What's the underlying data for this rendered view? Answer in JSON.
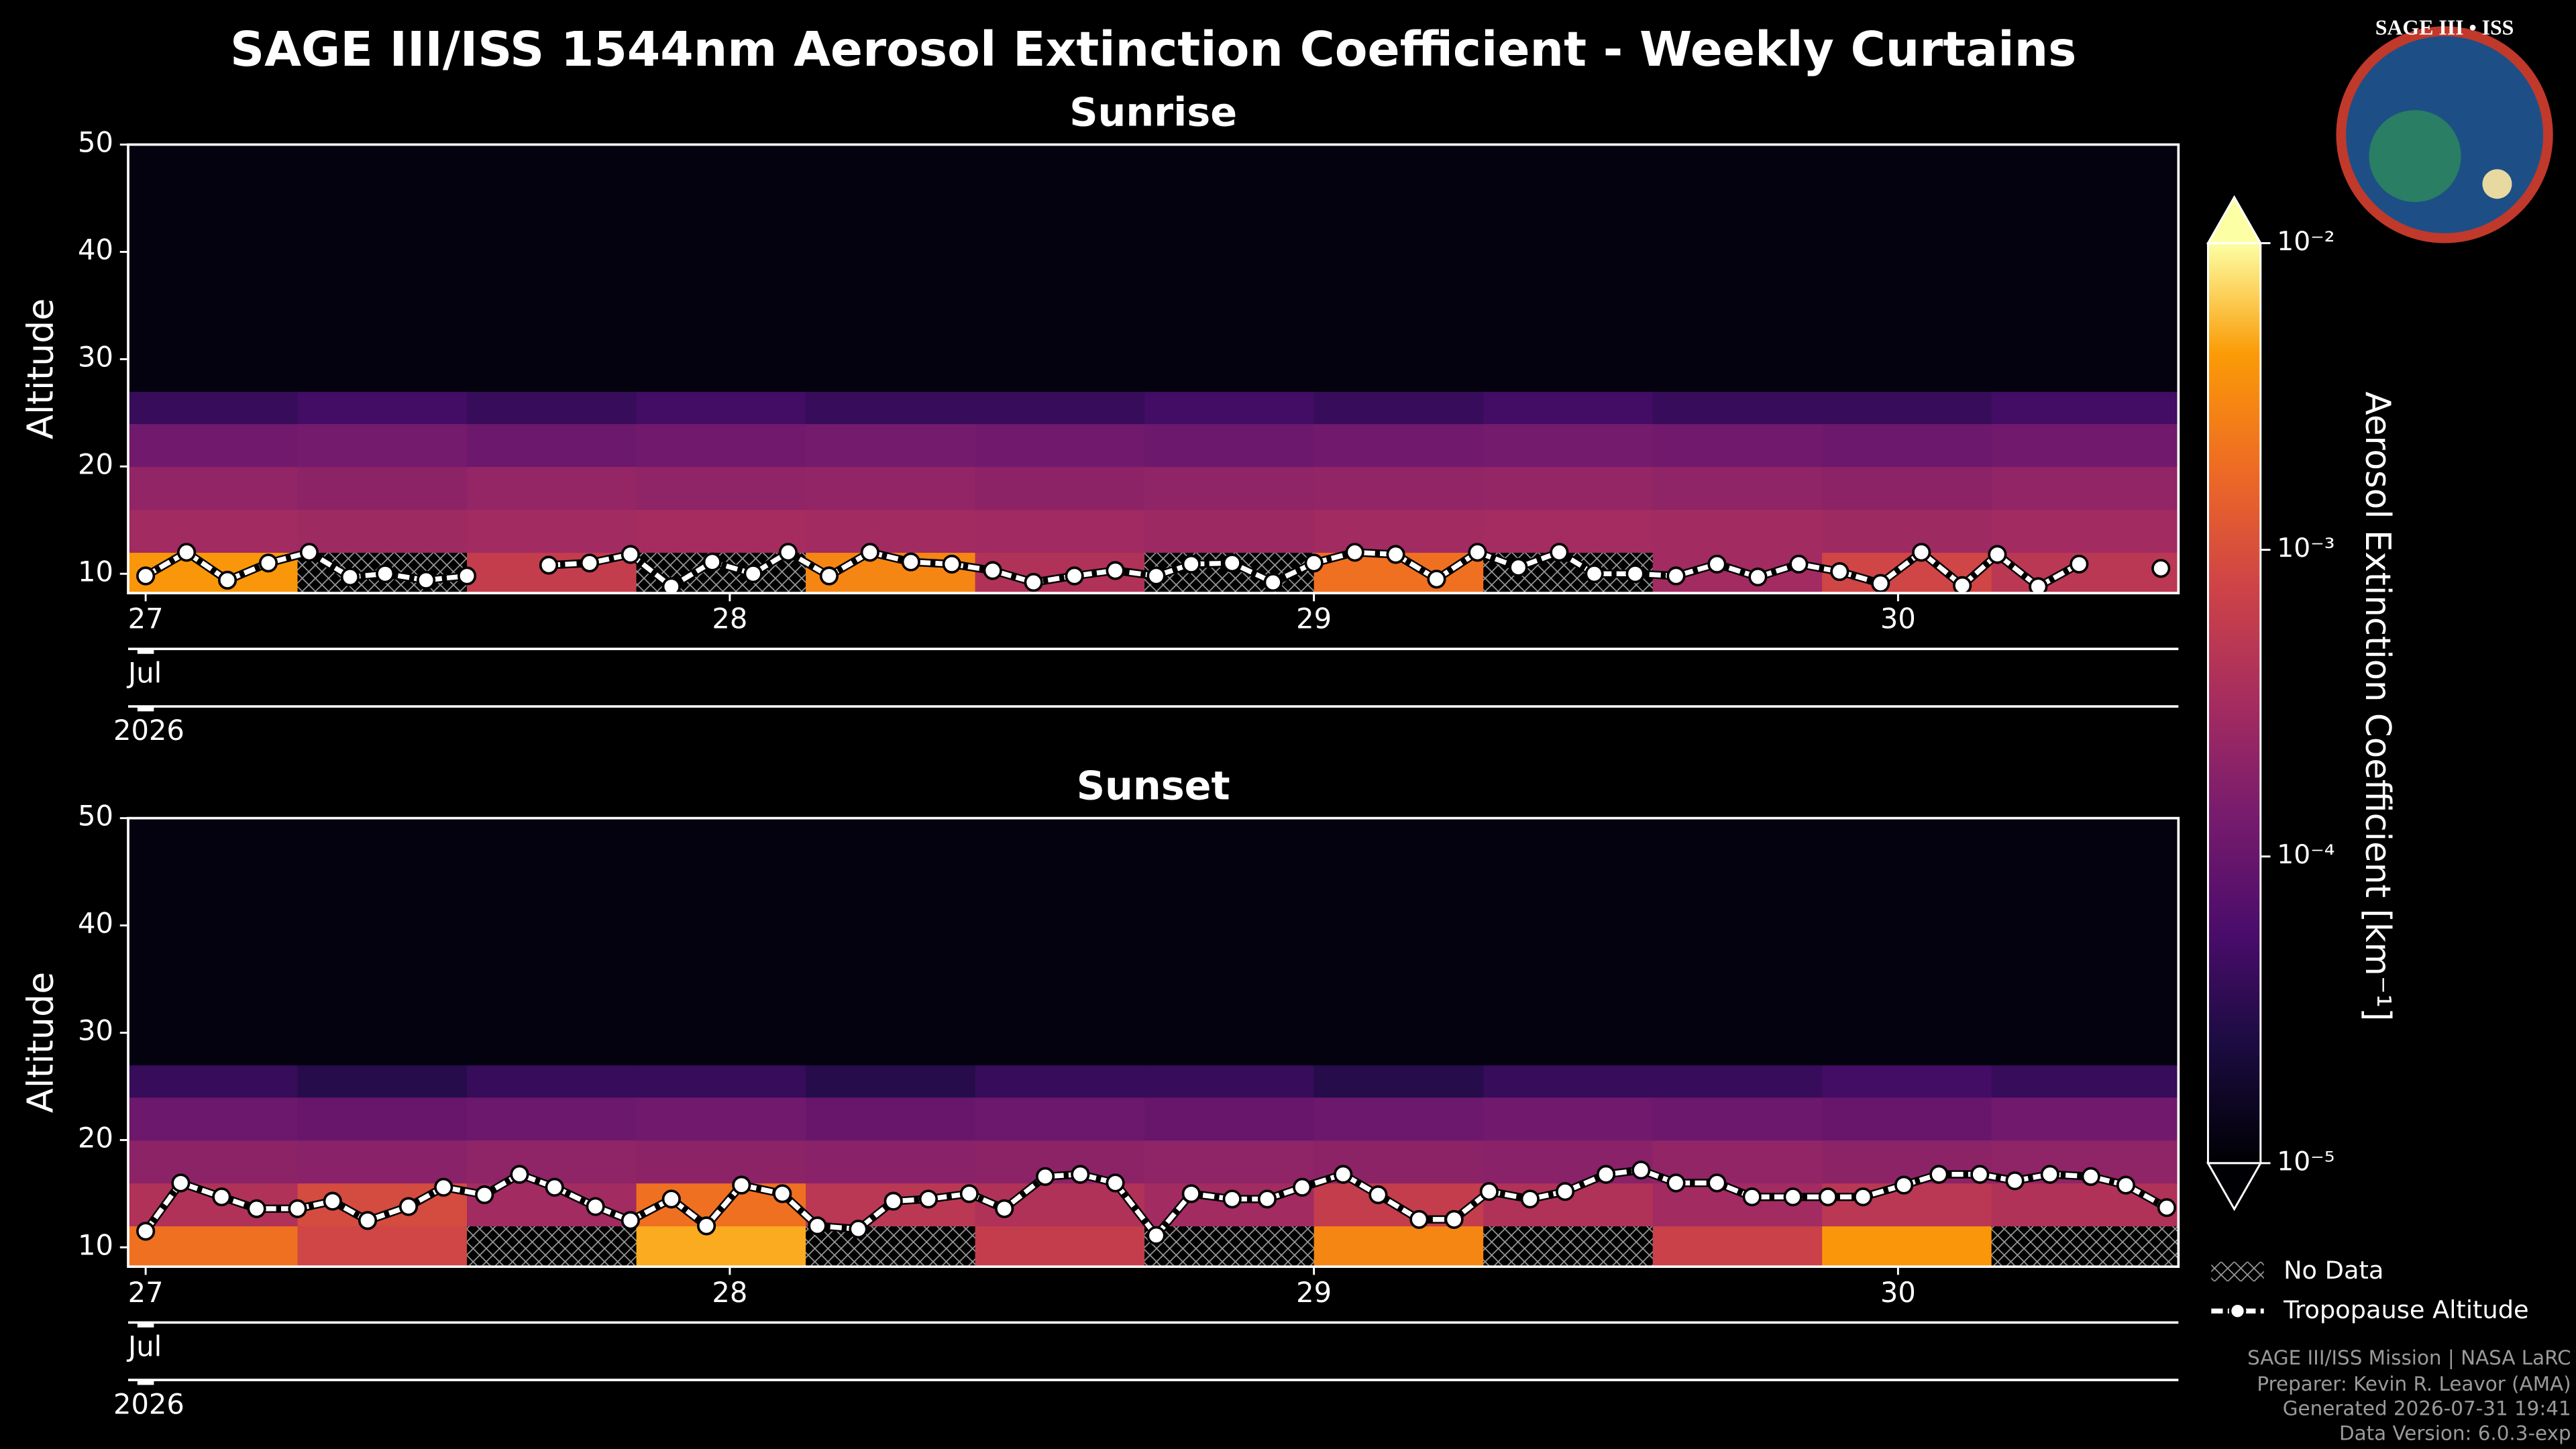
{
  "header": {
    "title": "SAGE III/ISS 1544nm Aerosol Extinction Coefficient - Weekly Curtains",
    "logo_text": "SAGE III • ISS"
  },
  "chart_data": [
    {
      "type": "heatmap",
      "title": "Sunrise",
      "ylabel": "Altitude",
      "month_label": "Jul",
      "year_label": "2026",
      "xlim": [
        26.97,
        30.48
      ],
      "xticks": [
        27,
        28,
        29,
        30
      ],
      "ylim": [
        8.2,
        50
      ],
      "yticks": [
        10,
        20,
        30,
        40,
        50
      ],
      "curtain": {
        "x_edges": [
          26.97,
          27.26,
          27.55,
          27.84,
          28.13,
          28.42,
          28.71,
          29.0,
          29.29,
          29.58,
          29.87,
          30.16,
          30.48
        ],
        "altitude_edges": [
          8.2,
          12,
          16,
          20,
          24,
          27,
          50
        ],
        "values": [
          [
            0.004,
            null,
            0.0006,
            null,
            0.003,
            0.0004,
            null,
            0.002,
            null,
            0.0003,
            0.0008,
            0.0005
          ],
          [
            0.0003,
            0.00028,
            0.0003,
            0.00032,
            0.0003,
            0.00029,
            0.00027,
            0.0003,
            0.00031,
            0.0003,
            0.00028,
            0.0003
          ],
          [
            0.00022,
            0.0002,
            0.00023,
            0.00021,
            0.00022,
            0.0002,
            0.00021,
            0.00022,
            0.00023,
            0.00021,
            0.0002,
            0.00022
          ],
          [
            0.00012,
            0.00013,
            0.00011,
            0.00012,
            0.00013,
            0.00012,
            0.00011,
            0.00012,
            0.00013,
            0.00012,
            0.00011,
            0.00012
          ],
          [
            4e-05,
            5e-05,
            4e-05,
            5e-05,
            4e-05,
            4e-05,
            5e-05,
            4e-05,
            5e-05,
            4e-05,
            4e-05,
            5e-05
          ],
          [
            1.2e-05,
            1.2e-05,
            1.2e-05,
            1.2e-05,
            1.2e-05,
            1.2e-05,
            1.2e-05,
            1.2e-05,
            1.2e-05,
            1.2e-05,
            1.2e-05,
            1.2e-05
          ]
        ]
      },
      "series": [
        {
          "color": "#ffffff",
          "x": [
            27.0,
            27.07,
            27.14,
            27.21,
            27.28,
            27.35,
            27.41,
            27.48,
            27.55,
            27.62,
            27.69,
            27.76,
            27.83,
            27.9,
            27.97,
            28.04,
            28.1,
            28.17,
            28.24,
            28.31,
            28.38,
            28.45,
            28.52,
            28.59,
            28.66,
            28.73,
            28.79,
            28.86,
            28.93,
            29.0,
            29.07,
            29.14,
            29.21,
            29.28,
            29.35,
            29.42,
            29.48,
            29.55,
            29.62,
            29.69,
            29.76,
            29.83,
            29.9,
            29.97,
            30.04,
            30.11,
            30.17,
            30.24,
            30.31,
            30.38,
            30.45
          ],
          "values": [
            9.8,
            12,
            9.4,
            11,
            12,
            9.7,
            10,
            9.4,
            9.8,
            null,
            10.8,
            11,
            11.8,
            8.8,
            11.1,
            10,
            12,
            9.8,
            12,
            11.1,
            10.9,
            10.3,
            9.2,
            9.8,
            10.3,
            9.8,
            10.9,
            11,
            9.2,
            11,
            12,
            11.8,
            9.5,
            12,
            10.6,
            12,
            10,
            10,
            9.8,
            10.9,
            9.7,
            10.9,
            10.2,
            9.1,
            12,
            8.9,
            11.8,
            8.8,
            10.9,
            null,
            10.5
          ]
        }
      ]
    },
    {
      "type": "heatmap",
      "title": "Sunset",
      "ylabel": "Altitude",
      "month_label": "Jul",
      "year_label": "2026",
      "xlim": [
        26.97,
        30.48
      ],
      "xticks": [
        27,
        28,
        29,
        30
      ],
      "ylim": [
        8.2,
        50
      ],
      "yticks": [
        10,
        20,
        30,
        40,
        50
      ],
      "curtain": {
        "x_edges": [
          26.97,
          27.26,
          27.55,
          27.84,
          28.13,
          28.42,
          28.71,
          29.0,
          29.29,
          29.58,
          29.87,
          30.16,
          30.48
        ],
        "altitude_edges": [
          8.2,
          12,
          16,
          20,
          24,
          27,
          50
        ],
        "values": [
          [
            0.002,
            0.0008,
            null,
            0.005,
            null,
            0.0006,
            null,
            0.003,
            null,
            0.0007,
            0.004,
            null
          ],
          [
            0.0004,
            0.0009,
            0.0003,
            0.002,
            0.0005,
            0.0004,
            0.0003,
            0.0006,
            0.0004,
            0.0003,
            0.0005,
            0.0004
          ],
          [
            0.0002,
            0.00019,
            0.00021,
            0.0002,
            0.00019,
            0.0002,
            0.00021,
            0.0002,
            0.00019,
            0.00022,
            0.0002,
            0.00021
          ],
          [
            0.00011,
            0.0001,
            0.00011,
            0.00012,
            0.0001,
            0.00011,
            0.0001,
            0.00011,
            0.00012,
            0.00011,
            0.0001,
            0.00012
          ],
          [
            4e-05,
            3e-05,
            4e-05,
            4e-05,
            3e-05,
            4e-05,
            4e-05,
            3e-05,
            4e-05,
            4e-05,
            5e-05,
            4e-05
          ],
          [
            1.2e-05,
            1.2e-05,
            1.2e-05,
            1.2e-05,
            1.2e-05,
            1.2e-05,
            1.2e-05,
            1.2e-05,
            1.2e-05,
            1.2e-05,
            1.2e-05,
            1.2e-05
          ]
        ]
      },
      "series": [
        {
          "color": "#ffffff",
          "x": [
            27.0,
            27.06,
            27.13,
            27.19,
            27.26,
            27.32,
            27.38,
            27.45,
            27.51,
            27.58,
            27.64,
            27.7,
            27.77,
            27.83,
            27.9,
            27.96,
            28.02,
            28.09,
            28.15,
            28.22,
            28.28,
            28.34,
            28.41,
            28.47,
            28.54,
            28.6,
            28.66,
            28.73,
            28.79,
            28.86,
            28.92,
            28.98,
            29.05,
            29.11,
            29.18,
            29.24,
            29.3,
            29.37,
            29.43,
            29.5,
            29.56,
            29.62,
            29.69,
            29.75,
            29.82,
            29.88,
            29.94,
            30.01,
            30.07,
            30.14,
            30.2,
            30.26,
            30.33,
            30.39,
            30.46
          ],
          "values": [
            11.5,
            16,
            14.7,
            13.6,
            13.6,
            14.3,
            12.5,
            13.8,
            15.6,
            14.9,
            16.8,
            15.6,
            13.8,
            12.5,
            14.5,
            12,
            15.8,
            15,
            12,
            11.7,
            14.3,
            14.5,
            15,
            13.6,
            16.6,
            16.8,
            16,
            11.1,
            15,
            14.5,
            14.5,
            15.6,
            16.8,
            14.9,
            12.6,
            12.6,
            15.2,
            14.5,
            15.2,
            16.8,
            17.2,
            16,
            16,
            14.7,
            14.7,
            14.7,
            14.7,
            15.8,
            16.8,
            16.8,
            16.2,
            16.8,
            16.6,
            15.8,
            13.7
          ]
        }
      ]
    }
  ],
  "colorbar": {
    "label": "Aerosol Extinction Coefficient [km⁻¹]",
    "scale": "log",
    "colormap": "inferno",
    "lim": [
      1e-05,
      0.01
    ],
    "ticks": [
      {
        "value": 1e-05,
        "label": "10⁻⁵"
      },
      {
        "value": 0.0001,
        "label": "10⁻⁴"
      },
      {
        "value": 0.001,
        "label": "10⁻³"
      },
      {
        "value": 0.01,
        "label": "10⁻²"
      }
    ]
  },
  "legend": {
    "no_data": "No Data",
    "tropopause": "Tropopause Altitude"
  },
  "footer": [
    "SAGE III/ISS Mission | NASA LaRC",
    "Preparer: Kevin R. Leavor (AMA)",
    "Generated 2026-07-31 19:41",
    "Data Version: 6.0.3-exp"
  ]
}
